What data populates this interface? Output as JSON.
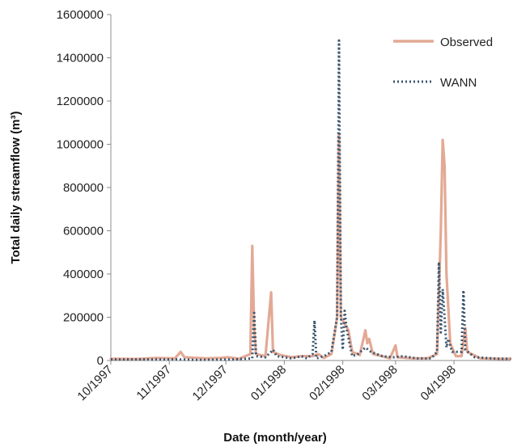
{
  "chart_data": {
    "type": "line",
    "xlabel": "Date (month/year)",
    "ylabel": "Total daily streamflow (m³)",
    "ylim": [
      0,
      1600000
    ],
    "y_ticks": [
      0,
      200000,
      400000,
      600000,
      800000,
      1000000,
      1200000,
      1400000,
      1600000
    ],
    "y_tick_labels": [
      "0",
      "200000",
      "400000",
      "600000",
      "800000",
      "1000000",
      "1200000",
      "1400000",
      "1600000"
    ],
    "x_range": [
      "1997-10-01",
      "1998-05-01"
    ],
    "x_ticks": [
      "1997-10-01",
      "1997-11-01",
      "1997-12-01",
      "1998-01-01",
      "1998-02-01",
      "1998-03-01",
      "1998-04-01"
    ],
    "x_tick_labels": [
      "10/1997",
      "11/1997",
      "12/1997",
      "01/1998",
      "02/1998",
      "03/1998",
      "04/1998"
    ],
    "grid": false,
    "legend_position": "top-right",
    "colors": {
      "observed": "#e3a995",
      "wann": "#3b5670"
    },
    "series": [
      {
        "name": "Observed",
        "style": "solid",
        "points": [
          [
            "1997-10-01",
            8000
          ],
          [
            "1997-10-15",
            7000
          ],
          [
            "1997-10-25",
            12000
          ],
          [
            "1997-11-04",
            10000
          ],
          [
            "1997-11-07",
            40000
          ],
          [
            "1997-11-09",
            15000
          ],
          [
            "1997-11-20",
            10000
          ],
          [
            "1997-11-28",
            12000
          ],
          [
            "1997-12-02",
            15000
          ],
          [
            "1997-12-08",
            8000
          ],
          [
            "1997-12-14",
            30000
          ],
          [
            "1997-12-15",
            530000
          ],
          [
            "1997-12-16",
            150000
          ],
          [
            "1997-12-17",
            30000
          ],
          [
            "1997-12-22",
            20000
          ],
          [
            "1997-12-25",
            315000
          ],
          [
            "1997-12-26",
            40000
          ],
          [
            "1997-12-30",
            25000
          ],
          [
            "1998-01-05",
            15000
          ],
          [
            "1998-01-10",
            20000
          ],
          [
            "1998-01-16",
            20000
          ],
          [
            "1998-01-19",
            30000
          ],
          [
            "1998-01-22",
            12000
          ],
          [
            "1998-01-26",
            30000
          ],
          [
            "1998-01-29",
            200000
          ],
          [
            "1998-01-30",
            1050000
          ],
          [
            "1998-01-31",
            200000
          ],
          [
            "1998-02-02",
            170000
          ],
          [
            "1998-02-04",
            140000
          ],
          [
            "1998-02-06",
            40000
          ],
          [
            "1998-02-10",
            25000
          ],
          [
            "1998-02-13",
            140000
          ],
          [
            "1998-02-14",
            80000
          ],
          [
            "1998-02-15",
            100000
          ],
          [
            "1998-02-17",
            30000
          ],
          [
            "1998-02-22",
            20000
          ],
          [
            "1998-02-26",
            10000
          ],
          [
            "1998-03-01",
            70000
          ],
          [
            "1998-03-02",
            15000
          ],
          [
            "1998-03-10",
            10000
          ],
          [
            "1998-03-18",
            10000
          ],
          [
            "1998-03-23",
            30000
          ],
          [
            "1998-03-25",
            600000
          ],
          [
            "1998-03-26",
            1020000
          ],
          [
            "1998-03-27",
            900000
          ],
          [
            "1998-03-28",
            400000
          ],
          [
            "1998-03-30",
            80000
          ],
          [
            "1998-04-02",
            20000
          ],
          [
            "1998-04-05",
            20000
          ],
          [
            "1998-04-07",
            150000
          ],
          [
            "1998-04-08",
            40000
          ],
          [
            "1998-04-15",
            10000
          ],
          [
            "1998-04-25",
            8000
          ],
          [
            "1998-05-01",
            8000
          ]
        ]
      },
      {
        "name": "WANN",
        "style": "dotted",
        "points": [
          [
            "1997-10-01",
            5000
          ],
          [
            "1997-10-20",
            5000
          ],
          [
            "1997-11-05",
            5000
          ],
          [
            "1997-11-15",
            3000
          ],
          [
            "1997-12-05",
            5000
          ],
          [
            "1997-12-15",
            10000
          ],
          [
            "1997-12-16",
            220000
          ],
          [
            "1997-12-17",
            20000
          ],
          [
            "1997-12-22",
            15000
          ],
          [
            "1997-12-25",
            40000
          ],
          [
            "1997-12-26",
            50000
          ],
          [
            "1997-12-28",
            20000
          ],
          [
            "1998-01-05",
            10000
          ],
          [
            "1998-01-10",
            20000
          ],
          [
            "1998-01-13",
            10000
          ],
          [
            "1998-01-16",
            30000
          ],
          [
            "1998-01-17",
            185000
          ],
          [
            "1998-01-18",
            10000
          ],
          [
            "1998-01-22",
            20000
          ],
          [
            "1998-01-26",
            40000
          ],
          [
            "1998-01-29",
            200000
          ],
          [
            "1998-01-30",
            1480000
          ],
          [
            "1998-01-31",
            200000
          ],
          [
            "1998-02-01",
            50000
          ],
          [
            "1998-02-02",
            230000
          ],
          [
            "1998-02-03",
            150000
          ],
          [
            "1998-02-06",
            20000
          ],
          [
            "1998-02-09",
            30000
          ],
          [
            "1998-02-13",
            60000
          ],
          [
            "1998-02-16",
            40000
          ],
          [
            "1998-02-22",
            20000
          ],
          [
            "1998-02-28",
            15000
          ],
          [
            "1998-03-05",
            20000
          ],
          [
            "1998-03-12",
            10000
          ],
          [
            "1998-03-20",
            10000
          ],
          [
            "1998-03-23",
            40000
          ],
          [
            "1998-03-24",
            455000
          ],
          [
            "1998-03-25",
            130000
          ],
          [
            "1998-03-26",
            330000
          ],
          [
            "1998-03-27",
            200000
          ],
          [
            "1998-03-28",
            60000
          ],
          [
            "1998-03-29",
            100000
          ],
          [
            "1998-03-31",
            40000
          ],
          [
            "1998-04-05",
            40000
          ],
          [
            "1998-04-06",
            325000
          ],
          [
            "1998-04-07",
            50000
          ],
          [
            "1998-04-12",
            15000
          ],
          [
            "1998-04-25",
            8000
          ],
          [
            "1998-05-01",
            8000
          ]
        ]
      }
    ]
  }
}
